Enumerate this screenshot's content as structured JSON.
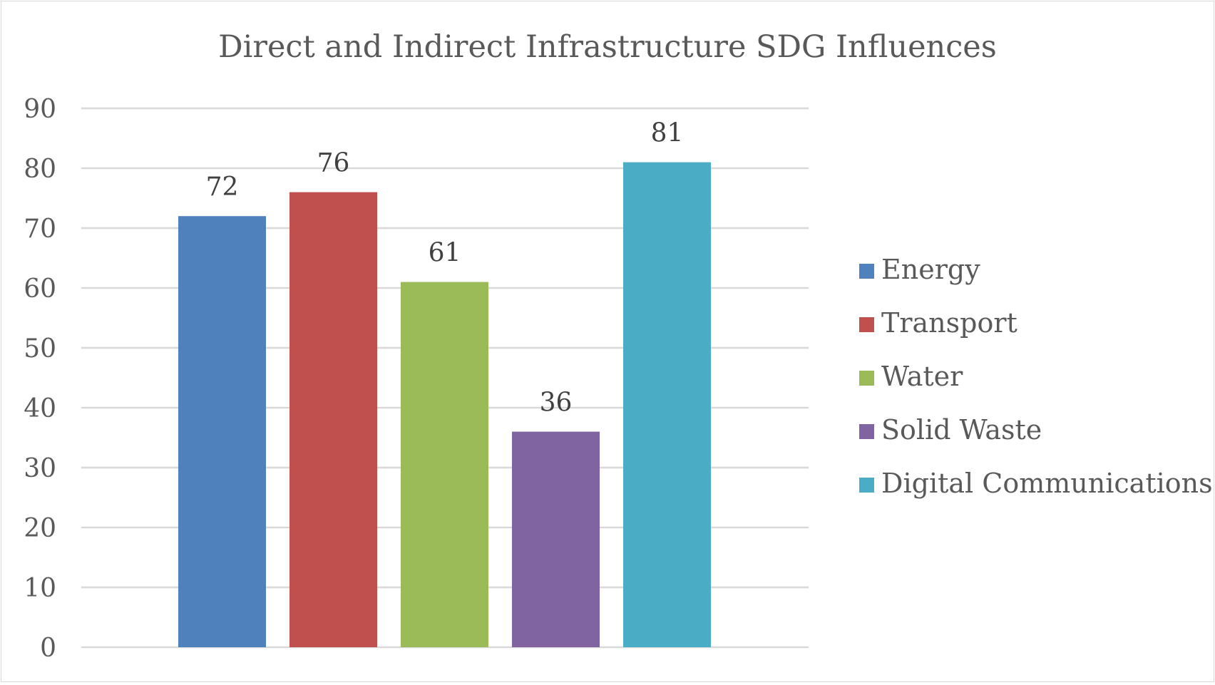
{
  "chart_data": {
    "type": "bar",
    "title": "Direct and Indirect Infrastructure SDG Influences",
    "xlabel": "",
    "ylabel": "",
    "ylim": [
      0,
      90
    ],
    "yticks": [
      0,
      10,
      20,
      30,
      40,
      50,
      60,
      70,
      80,
      90
    ],
    "grid": true,
    "legend_position": "right",
    "data_labels": true,
    "series": [
      {
        "name": "Energy",
        "values": [
          72
        ],
        "color": "#4F81BD"
      },
      {
        "name": "Transport",
        "values": [
          76
        ],
        "color": "#C0504D"
      },
      {
        "name": "Water",
        "values": [
          61
        ],
        "color": "#9BBB59"
      },
      {
        "name": "Solid Waste",
        "values": [
          36
        ],
        "color": "#8064A2"
      },
      {
        "name": "Digital Communications",
        "values": [
          81
        ],
        "color": "#4BACC6"
      }
    ]
  },
  "colors": {
    "gridline": "#d9d9d9",
    "text": "#595959",
    "data_label": "#404040"
  }
}
